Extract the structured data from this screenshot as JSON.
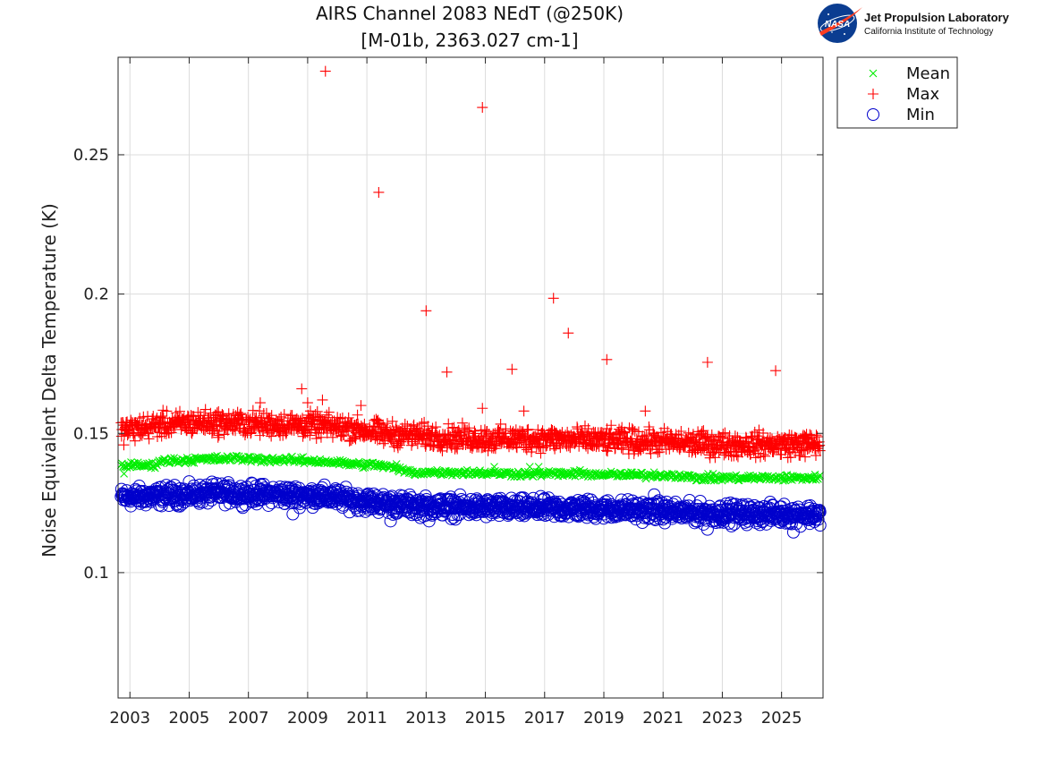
{
  "logo": {
    "org_name": "Jet Propulsion Laboratory",
    "org_sub": "California Institute of Technology",
    "mark_text": "NASA",
    "colors": {
      "disc": "#0b3d91",
      "swoosh": "#fc3d21"
    }
  },
  "chart_data": {
    "type": "scatter",
    "title_lines": [
      "AIRS Channel 2083 NEdT (@250K)",
      "[M-01b, 2363.027 cm-1]"
    ],
    "xlabel": "",
    "ylabel": "Noise Equivalent Delta Temperature (K)",
    "xlim": [
      2002.6,
      2026.4
    ],
    "ylim": [
      0.055,
      0.285
    ],
    "xticks": [
      2003,
      2005,
      2007,
      2009,
      2011,
      2013,
      2015,
      2017,
      2019,
      2021,
      2023,
      2025
    ],
    "xtick_labels": [
      "2003",
      "2005",
      "2007",
      "2009",
      "2011",
      "2013",
      "2015",
      "2017",
      "2019",
      "2021",
      "2023",
      "2025"
    ],
    "yticks": [
      0.1,
      0.15,
      0.2,
      0.25
    ],
    "ytick_labels": [
      "0.1",
      "0.15",
      "0.2",
      "0.25"
    ],
    "grid": true,
    "legend_placement": "outside-top-right",
    "series": [
      {
        "name": "Mean",
        "marker": "x",
        "color": "#00ee00",
        "trend": [
          [
            2002.7,
            0.1385
          ],
          [
            2003.8,
            0.1385
          ],
          [
            2004.0,
            0.14
          ],
          [
            2005.0,
            0.1405
          ],
          [
            2006.5,
            0.141
          ],
          [
            2008.0,
            0.1405
          ],
          [
            2009.5,
            0.14
          ],
          [
            2010.5,
            0.139
          ],
          [
            2011.5,
            0.1385
          ],
          [
            2012.5,
            0.136
          ],
          [
            2014.0,
            0.136
          ],
          [
            2016.0,
            0.1355
          ],
          [
            2018.0,
            0.1355
          ],
          [
            2020.0,
            0.135
          ],
          [
            2021.5,
            0.135
          ],
          [
            2022.0,
            0.134
          ],
          [
            2024.0,
            0.134
          ],
          [
            2026.3,
            0.134
          ]
        ],
        "spread": 0.0008,
        "outliers": [
          [
            2002.8,
            0.1355
          ],
          [
            2012.0,
            0.139
          ],
          [
            2015.3,
            0.138
          ],
          [
            2016.5,
            0.138
          ],
          [
            2016.8,
            0.138
          ]
        ]
      },
      {
        "name": "Max",
        "marker": "+",
        "color": "#ff0000",
        "trend": [
          [
            2002.7,
            0.151
          ],
          [
            2004.0,
            0.153
          ],
          [
            2005.5,
            0.154
          ],
          [
            2007.0,
            0.1535
          ],
          [
            2009.0,
            0.153
          ],
          [
            2010.5,
            0.152
          ],
          [
            2011.5,
            0.15
          ],
          [
            2013.0,
            0.149
          ],
          [
            2015.0,
            0.148
          ],
          [
            2017.0,
            0.148
          ],
          [
            2019.0,
            0.1475
          ],
          [
            2021.0,
            0.147
          ],
          [
            2023.0,
            0.146
          ],
          [
            2026.3,
            0.146
          ]
        ],
        "spread": 0.003,
        "outliers": [
          [
            2009.6,
            0.28
          ],
          [
            2014.9,
            0.267
          ],
          [
            2011.4,
            0.2365
          ],
          [
            2013.0,
            0.194
          ],
          [
            2017.3,
            0.1985
          ],
          [
            2017.8,
            0.186
          ],
          [
            2019.1,
            0.1765
          ],
          [
            2022.5,
            0.1755
          ],
          [
            2024.8,
            0.1725
          ],
          [
            2013.7,
            0.172
          ],
          [
            2015.9,
            0.173
          ],
          [
            2008.8,
            0.166
          ],
          [
            2009.5,
            0.162
          ],
          [
            2010.8,
            0.16
          ],
          [
            2014.9,
            0.159
          ],
          [
            2016.3,
            0.158
          ],
          [
            2020.4,
            0.158
          ],
          [
            2009.0,
            0.161
          ],
          [
            2007.4,
            0.161
          ]
        ]
      },
      {
        "name": "Min",
        "marker": "o",
        "color": "#0000cc",
        "trend": [
          [
            2002.7,
            0.127
          ],
          [
            2004.0,
            0.1275
          ],
          [
            2006.0,
            0.1285
          ],
          [
            2008.0,
            0.128
          ],
          [
            2009.5,
            0.1275
          ],
          [
            2011.0,
            0.1255
          ],
          [
            2012.5,
            0.124
          ],
          [
            2014.0,
            0.1235
          ],
          [
            2016.0,
            0.123
          ],
          [
            2018.0,
            0.123
          ],
          [
            2020.0,
            0.1225
          ],
          [
            2022.0,
            0.1215
          ],
          [
            2024.0,
            0.121
          ],
          [
            2026.3,
            0.121
          ]
        ],
        "spread": 0.0025,
        "outliers": [
          [
            2025.4,
            0.1145
          ],
          [
            2022.5,
            0.1155
          ],
          [
            2026.3,
            0.117
          ],
          [
            2011.8,
            0.1185
          ],
          [
            2008.5,
            0.121
          ],
          [
            2013.1,
            0.1185
          ],
          [
            2020.7,
            0.128
          ]
        ]
      }
    ]
  }
}
